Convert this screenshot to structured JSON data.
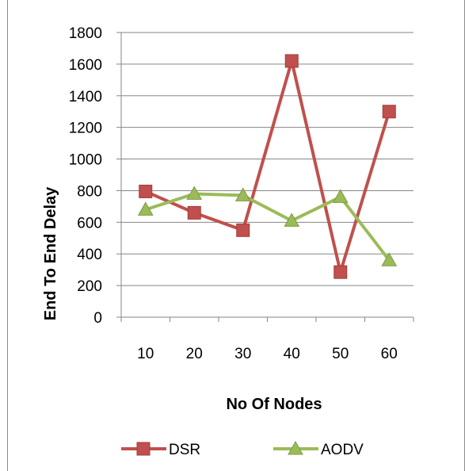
{
  "chart_data": {
    "type": "line",
    "title": "",
    "xlabel": "No Of Nodes",
    "ylabel": "End To End Delay",
    "categories": [
      "10",
      "20",
      "30",
      "40",
      "50",
      "60"
    ],
    "ylim": [
      0,
      1800
    ],
    "yticks": [
      "0",
      "200",
      "400",
      "600",
      "800",
      "1000",
      "1200",
      "1400",
      "1600",
      "1800"
    ],
    "grid": true,
    "legend_position": "bottom",
    "series": [
      {
        "name": "DSR",
        "values": [
          795,
          660,
          550,
          1620,
          285,
          1300
        ],
        "color": "#c0504d",
        "marker": "square"
      },
      {
        "name": "AODV",
        "values": [
          680,
          780,
          770,
          610,
          760,
          360
        ],
        "color": "#9bbb59",
        "marker": "triangle"
      }
    ]
  }
}
